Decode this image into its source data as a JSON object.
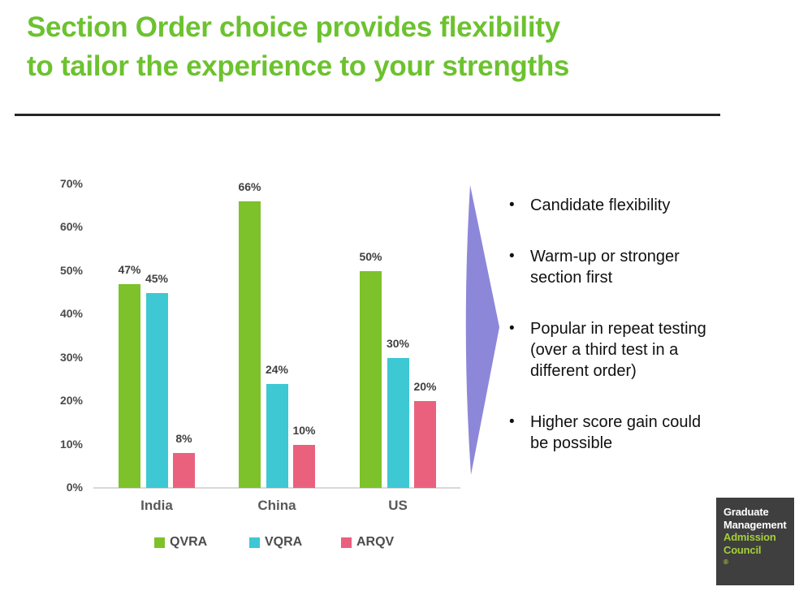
{
  "title": {
    "line1": "Section Order choice provides flexibility",
    "line2": "to tailor the experience to your strengths"
  },
  "colors": {
    "title_green": "#6CC22F",
    "series_qvra_green": "#7DC22A",
    "series_vqra_cyan": "#3DC8D4",
    "series_arqv_pink": "#EA617E",
    "arrow_purple": "#8D87D9",
    "axis_text_gray": "#4A4A4A",
    "category_text_gray": "#595959",
    "logo_background": "#3F3F3F",
    "logo_green": "#A6CE39",
    "logo_white": "#FFFFFF"
  },
  "chart_data": {
    "type": "bar",
    "categories": [
      "India",
      "China",
      "US"
    ],
    "series": [
      {
        "name": "QVRA",
        "color": "#7DC22A",
        "values": [
          47,
          66,
          50
        ]
      },
      {
        "name": "VQRA",
        "color": "#3DC8D4",
        "values": [
          45,
          24,
          30
        ]
      },
      {
        "name": "ARQV",
        "color": "#EA617E",
        "values": [
          8,
          10,
          20
        ]
      }
    ],
    "value_suffix": "%",
    "y_ticks": [
      "0%",
      "10%",
      "20%",
      "30%",
      "40%",
      "50%",
      "60%",
      "70%"
    ],
    "ylim": [
      0,
      70
    ],
    "grid": false,
    "legend_position": "bottom",
    "xlabel": "",
    "ylabel": "",
    "data_labels": {
      "India": {
        "QVRA": "47%",
        "VQRA": "45%",
        "ARQV": "8%"
      },
      "China": {
        "QVRA": "66%",
        "VQRA": "24%",
        "ARQV": "10%"
      },
      "US": {
        "QVRA": "50%",
        "VQRA": "30%",
        "ARQV": "20%"
      }
    }
  },
  "bullets": {
    "items": [
      "Candidate flexibility",
      "Warm-up or stronger section first",
      "Popular in repeat testing (over a third test in a different order)",
      "Higher score gain could be possible"
    ]
  },
  "logo": {
    "lines": [
      "Graduate",
      "Management",
      "Admission",
      "Council"
    ],
    "reg_mark": "®"
  }
}
